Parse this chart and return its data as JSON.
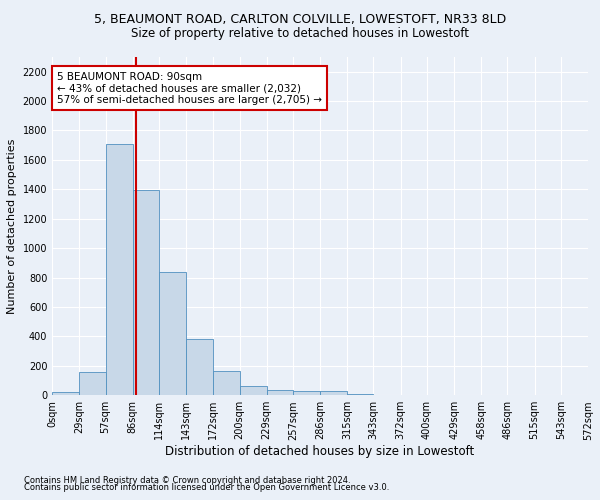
{
  "title_line1": "5, BEAUMONT ROAD, CARLTON COLVILLE, LOWESTOFT, NR33 8LD",
  "title_line2": "Size of property relative to detached houses in Lowestoft",
  "xlabel": "Distribution of detached houses by size in Lowestoft",
  "ylabel": "Number of detached properties",
  "footnote1": "Contains HM Land Registry data © Crown copyright and database right 2024.",
  "footnote2": "Contains public sector information licensed under the Open Government Licence v3.0.",
  "bin_edges": [
    0,
    29,
    57,
    86,
    114,
    143,
    172,
    200,
    229,
    257,
    286,
    315,
    343,
    372,
    400,
    429,
    458,
    486,
    515,
    543,
    572
  ],
  "bar_heights": [
    20,
    155,
    1710,
    1395,
    835,
    385,
    163,
    65,
    38,
    28,
    28,
    5,
    0,
    0,
    0,
    0,
    0,
    0,
    0,
    0
  ],
  "bar_color": "#c8d8e8",
  "bar_edge_color": "#5090c0",
  "property_size": 90,
  "property_line_color": "#cc0000",
  "annotation_line1": "5 BEAUMONT ROAD: 90sqm",
  "annotation_line2": "← 43% of detached houses are smaller (2,032)",
  "annotation_line3": "57% of semi-detached houses are larger (2,705) →",
  "annotation_box_color": "#cc0000",
  "annotation_fill": "white",
  "ylim": [
    0,
    2300
  ],
  "yticks": [
    0,
    200,
    400,
    600,
    800,
    1000,
    1200,
    1400,
    1600,
    1800,
    2000,
    2200
  ],
  "background_color": "#eaf0f8",
  "grid_color": "white",
  "title1_fontsize": 9,
  "title2_fontsize": 8.5,
  "xlabel_fontsize": 8.5,
  "ylabel_fontsize": 8,
  "tick_fontsize": 7,
  "annotation_fontsize": 7.5,
  "footnote_fontsize": 6
}
